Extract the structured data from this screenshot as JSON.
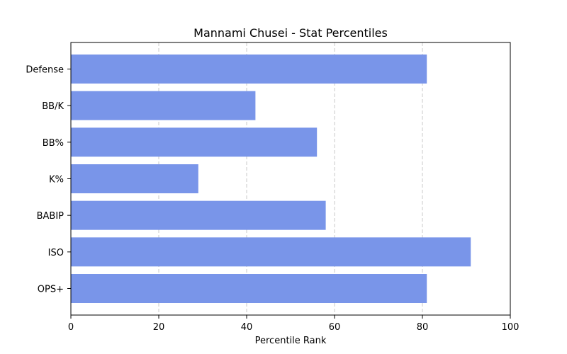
{
  "chart_data": {
    "type": "bar",
    "orientation": "horizontal",
    "title": "Mannami Chusei - Stat Percentiles",
    "xlabel": "Percentile Rank",
    "ylabel": "",
    "categories": [
      "Defense",
      "BB/K",
      "BB%",
      "K%",
      "BABIP",
      "ISO",
      "OPS+"
    ],
    "values": [
      81,
      42,
      56,
      29,
      58,
      91,
      81
    ],
    "xlim": [
      0,
      100
    ],
    "xticks": [
      0,
      20,
      40,
      60,
      80,
      100
    ],
    "grid": "x-dashed",
    "bar_color": "#7995e9"
  }
}
